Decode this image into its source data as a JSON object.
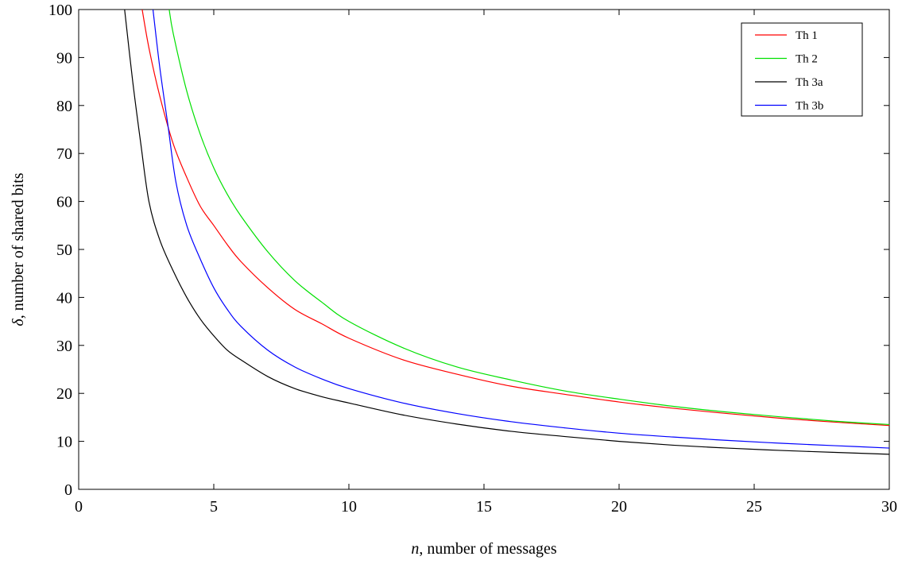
{
  "chart_data": {
    "type": "line",
    "xlabel_var": "n",
    "xlabel_rest": ", number of messages",
    "ylabel_var": "δ",
    "ylabel_rest": ", number of shared bits",
    "xlim": [
      0,
      30
    ],
    "ylim": [
      0,
      100
    ],
    "xticks": [
      0,
      5,
      10,
      15,
      20,
      25,
      30
    ],
    "yticks": [
      0,
      10,
      20,
      30,
      40,
      50,
      60,
      70,
      80,
      90,
      100
    ],
    "grid": false,
    "legend_position": "top-right",
    "series": [
      {
        "name": "Th 1",
        "color": "#ff0000",
        "x": [
          2.35,
          2.6,
          3,
          3.5,
          4,
          4.5,
          5,
          5.5,
          6,
          7,
          8,
          9,
          10,
          12,
          14,
          16,
          18,
          20,
          22,
          24,
          26,
          28,
          30
        ],
        "y": [
          100,
          92,
          82,
          72,
          65,
          59,
          55,
          51,
          47.5,
          42,
          37.5,
          34.5,
          31.5,
          27,
          24,
          21.5,
          19.8,
          18.2,
          16.9,
          15.8,
          14.8,
          14,
          13.3
        ]
      },
      {
        "name": "Th 2",
        "color": "#00e000",
        "x": [
          3.35,
          3.5,
          4,
          4.5,
          5,
          5.5,
          6,
          7,
          8,
          9,
          10,
          12,
          14,
          16,
          18,
          20,
          22,
          24,
          26,
          28,
          30
        ],
        "y": [
          100,
          95,
          83,
          74,
          67,
          61.5,
          57,
          49.5,
          43.5,
          39,
          35,
          29.5,
          25.5,
          22.8,
          20.5,
          18.8,
          17.3,
          16.1,
          15.1,
          14.2,
          13.5
        ]
      },
      {
        "name": "Th 3a",
        "color": "#000000",
        "x": [
          1.7,
          2,
          2.3,
          2.6,
          3,
          3.5,
          4,
          4.5,
          5,
          5.5,
          6,
          7,
          8,
          9,
          10,
          12,
          14,
          16,
          18,
          20,
          22,
          24,
          26,
          28,
          30
        ],
        "y": [
          100,
          85,
          72,
          60,
          52,
          45.5,
          40,
          35.5,
          32,
          29,
          27,
          23.5,
          21,
          19.3,
          18,
          15.5,
          13.6,
          12.1,
          11,
          10,
          9.2,
          8.6,
          8.1,
          7.7,
          7.3
        ]
      },
      {
        "name": "Th 3b",
        "color": "#0000ff",
        "x": [
          2.75,
          3,
          3.3,
          3.6,
          4,
          4.5,
          5,
          5.5,
          6,
          7,
          8,
          9,
          10,
          12,
          14,
          16,
          18,
          20,
          22,
          24,
          26,
          28,
          30
        ],
        "y": [
          100,
          88,
          76,
          64,
          55,
          48,
          42,
          37.5,
          34,
          29,
          25.5,
          23,
          21,
          18,
          15.8,
          14.1,
          12.8,
          11.7,
          10.9,
          10.2,
          9.6,
          9.1,
          8.6
        ]
      }
    ]
  }
}
